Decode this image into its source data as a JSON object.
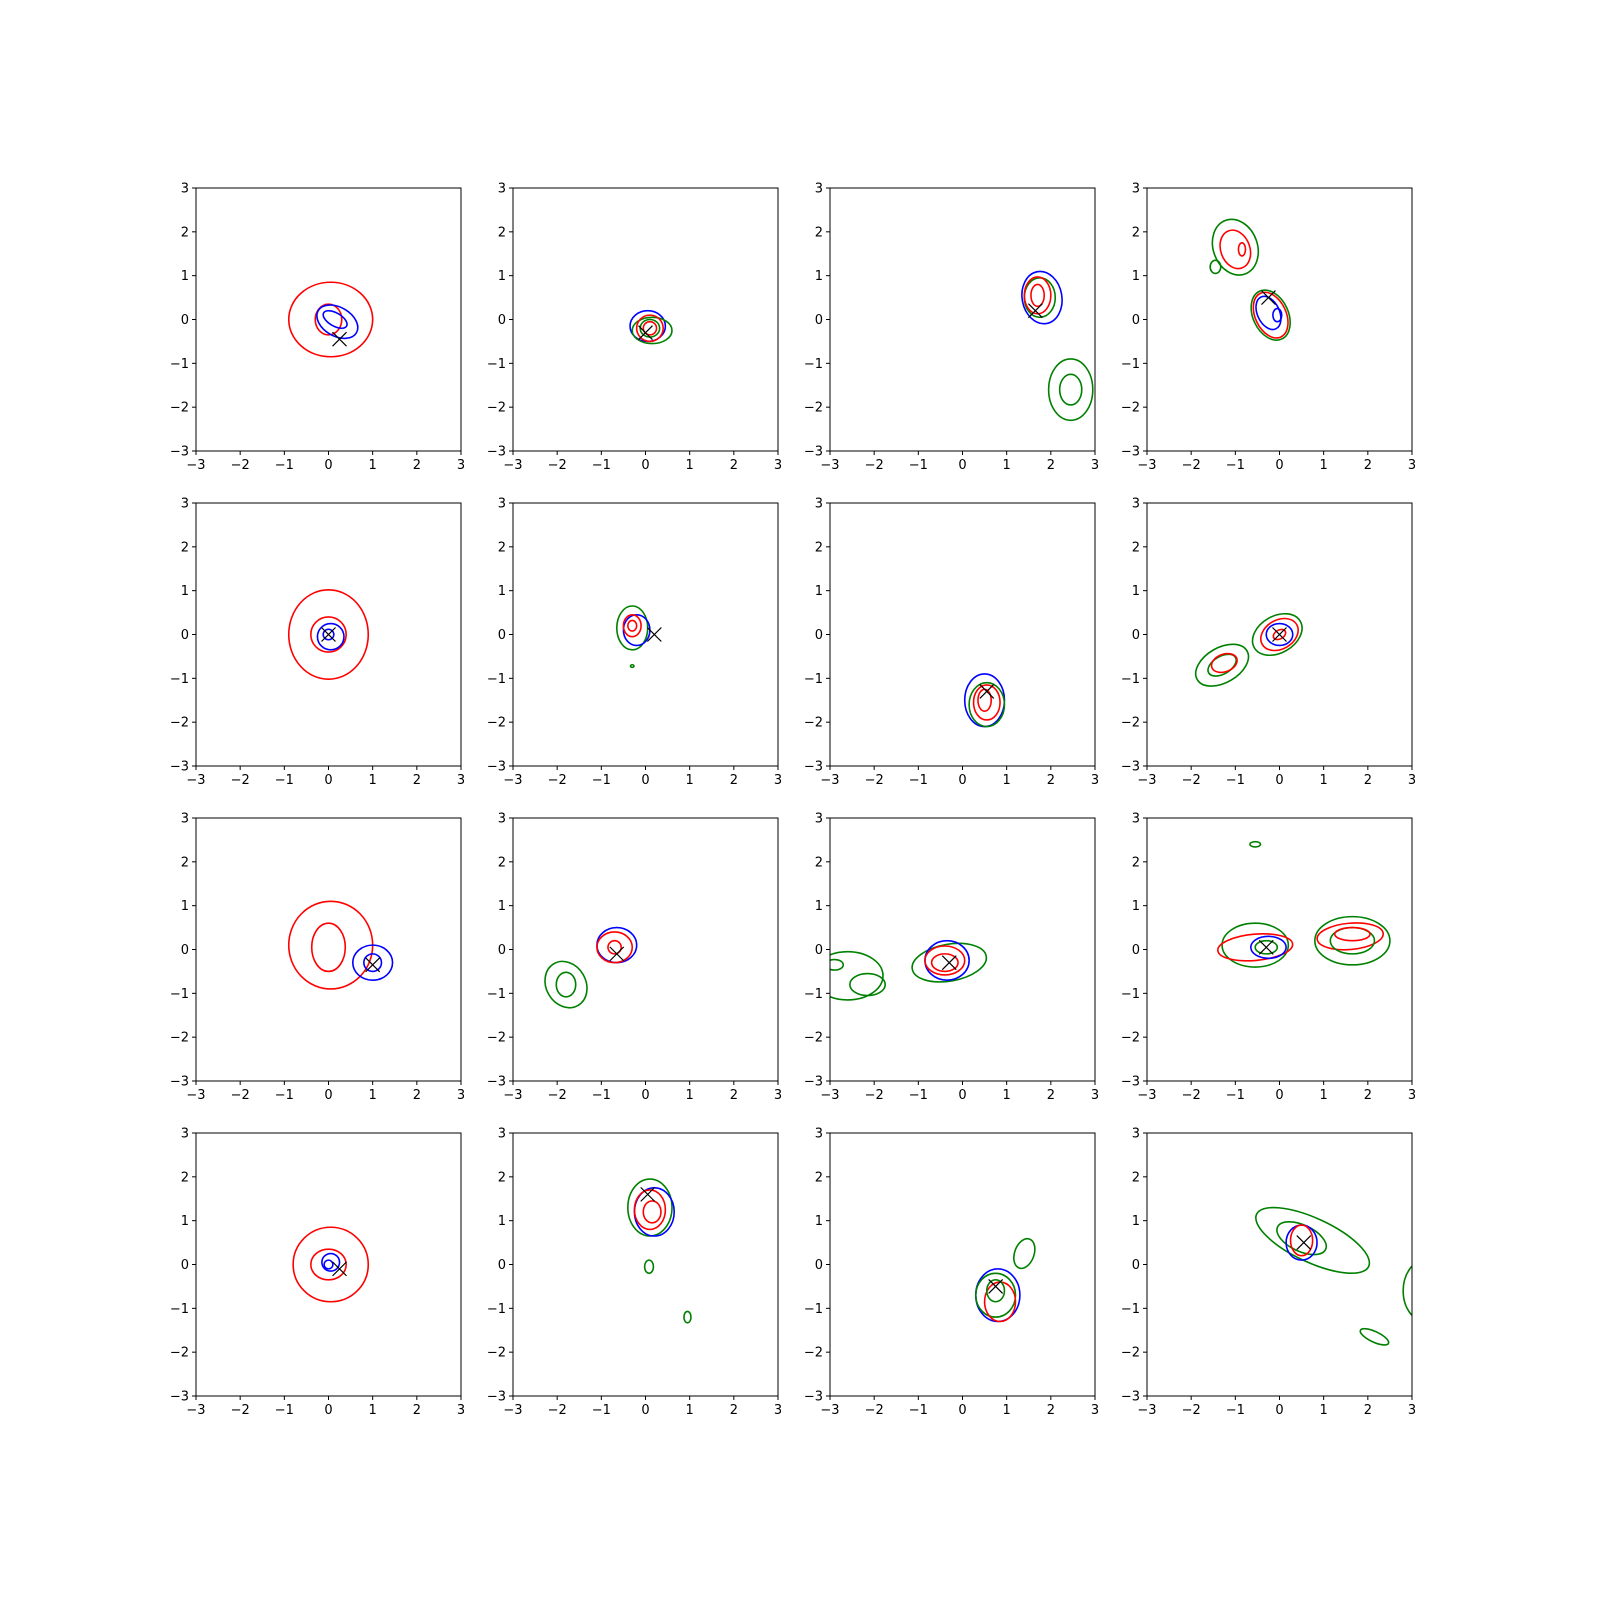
{
  "chart_data": {
    "type": "contour",
    "grid": false,
    "rows": 4,
    "cols": 4,
    "xlim": [
      -3,
      3
    ],
    "ylim": [
      -3,
      3
    ],
    "xticks": [
      -3,
      -2,
      -1,
      0,
      1,
      2,
      3
    ],
    "yticks": [
      -3,
      -2,
      -1,
      0,
      1,
      2,
      3
    ],
    "tick_labels": [
      "−3",
      "−2",
      "−1",
      "0",
      "1",
      "2",
      "3"
    ],
    "colors": {
      "red": "#ff0000",
      "blue": "#0000ff",
      "green": "#008000",
      "marker": "#000000"
    },
    "panels": [
      {
        "marker": [
          0.25,
          -0.45
        ],
        "contours": [
          {
            "c": "red",
            "cx": 0.05,
            "cy": 0.0,
            "rx": 0.95,
            "ry": 0.85,
            "a": 0
          },
          {
            "c": "red",
            "cx": 0.0,
            "cy": 0.0,
            "rx": 0.3,
            "ry": 0.35,
            "a": 0
          },
          {
            "c": "blue",
            "cx": 0.2,
            "cy": -0.05,
            "rx": 0.5,
            "ry": 0.33,
            "a": -30
          },
          {
            "c": "blue",
            "cx": 0.15,
            "cy": 0.0,
            "rx": 0.3,
            "ry": 0.15,
            "a": -30
          }
        ]
      },
      {
        "marker": [
          0.0,
          -0.3
        ],
        "contours": [
          {
            "c": "blue",
            "cx": 0.05,
            "cy": -0.15,
            "rx": 0.4,
            "ry": 0.35,
            "a": 0
          },
          {
            "c": "green",
            "cx": 0.15,
            "cy": -0.25,
            "rx": 0.45,
            "ry": 0.3,
            "a": 0
          },
          {
            "c": "red",
            "cx": 0.1,
            "cy": -0.2,
            "rx": 0.3,
            "ry": 0.3,
            "a": 0
          },
          {
            "c": "green",
            "cx": 0.1,
            "cy": -0.2,
            "rx": 0.22,
            "ry": 0.2,
            "a": 0
          },
          {
            "c": "red",
            "cx": 0.1,
            "cy": -0.2,
            "rx": 0.15,
            "ry": 0.15,
            "a": 0
          }
        ]
      },
      {
        "marker": [
          1.65,
          0.2
        ],
        "contours": [
          {
            "c": "blue",
            "cx": 1.8,
            "cy": 0.5,
            "rx": 0.45,
            "ry": 0.6,
            "a": 10
          },
          {
            "c": "green",
            "cx": 1.75,
            "cy": 0.5,
            "rx": 0.35,
            "ry": 0.45,
            "a": 0
          },
          {
            "c": "red",
            "cx": 1.7,
            "cy": 0.55,
            "rx": 0.3,
            "ry": 0.42,
            "a": 0
          },
          {
            "c": "red",
            "cx": 1.7,
            "cy": 0.55,
            "rx": 0.15,
            "ry": 0.25,
            "a": 0
          },
          {
            "c": "green",
            "cx": 2.45,
            "cy": -1.6,
            "rx": 0.5,
            "ry": 0.7,
            "a": 0
          },
          {
            "c": "green",
            "cx": 2.45,
            "cy": -1.6,
            "rx": 0.25,
            "ry": 0.35,
            "a": 0
          }
        ]
      },
      {
        "marker": [
          -0.25,
          0.5
        ],
        "contours": [
          {
            "c": "green",
            "cx": -1.0,
            "cy": 1.65,
            "rx": 0.5,
            "ry": 0.65,
            "a": 20
          },
          {
            "c": "green",
            "cx": -1.45,
            "cy": 1.2,
            "rx": 0.12,
            "ry": 0.15,
            "a": 0
          },
          {
            "c": "red",
            "cx": -1.0,
            "cy": 1.6,
            "rx": 0.33,
            "ry": 0.45,
            "a": 20
          },
          {
            "c": "red",
            "cx": -0.85,
            "cy": 1.6,
            "rx": 0.08,
            "ry": 0.15,
            "a": 0
          },
          {
            "c": "green",
            "cx": -0.2,
            "cy": 0.1,
            "rx": 0.4,
            "ry": 0.6,
            "a": 25
          },
          {
            "c": "red",
            "cx": -0.2,
            "cy": 0.1,
            "rx": 0.35,
            "ry": 0.55,
            "a": 25
          },
          {
            "c": "blue",
            "cx": -0.25,
            "cy": 0.15,
            "rx": 0.25,
            "ry": 0.4,
            "a": 25
          },
          {
            "c": "blue",
            "cx": -0.05,
            "cy": 0.1,
            "rx": 0.1,
            "ry": 0.15,
            "a": 0
          }
        ]
      },
      {
        "marker": [
          0.0,
          0.0
        ],
        "contours": [
          {
            "c": "red",
            "cx": 0.0,
            "cy": 0.0,
            "rx": 0.9,
            "ry": 1.02,
            "a": 0
          },
          {
            "c": "red",
            "cx": 0.0,
            "cy": 0.0,
            "rx": 0.4,
            "ry": 0.4,
            "a": 0
          },
          {
            "c": "blue",
            "cx": 0.05,
            "cy": -0.05,
            "rx": 0.3,
            "ry": 0.3,
            "a": 0
          },
          {
            "c": "blue",
            "cx": 0.0,
            "cy": 0.0,
            "rx": 0.12,
            "ry": 0.12,
            "a": 0
          }
        ]
      },
      {
        "marker": [
          0.2,
          0.0
        ],
        "contours": [
          {
            "c": "green",
            "cx": -0.3,
            "cy": 0.15,
            "rx": 0.35,
            "ry": 0.5,
            "a": 0
          },
          {
            "c": "blue",
            "cx": -0.2,
            "cy": 0.1,
            "rx": 0.3,
            "ry": 0.35,
            "a": 0
          },
          {
            "c": "red",
            "cx": -0.3,
            "cy": 0.2,
            "rx": 0.2,
            "ry": 0.25,
            "a": 0
          },
          {
            "c": "red",
            "cx": -0.3,
            "cy": 0.2,
            "rx": 0.1,
            "ry": 0.12,
            "a": 0
          },
          {
            "c": "green",
            "cx": -0.3,
            "cy": -0.72,
            "rx": 0.04,
            "ry": 0.03,
            "a": 0
          }
        ]
      },
      {
        "marker": [
          0.55,
          -1.3
        ],
        "contours": [
          {
            "c": "blue",
            "cx": 0.5,
            "cy": -1.5,
            "rx": 0.45,
            "ry": 0.6,
            "a": 0
          },
          {
            "c": "green",
            "cx": 0.55,
            "cy": -1.6,
            "rx": 0.4,
            "ry": 0.5,
            "a": 0
          },
          {
            "c": "red",
            "cx": 0.55,
            "cy": -1.55,
            "rx": 0.3,
            "ry": 0.4,
            "a": 0
          },
          {
            "c": "red",
            "cx": 0.5,
            "cy": -1.5,
            "rx": 0.15,
            "ry": 0.25,
            "a": 0
          }
        ]
      },
      {
        "marker": [
          0.0,
          0.0
        ],
        "contours": [
          {
            "c": "green",
            "cx": -1.3,
            "cy": -0.7,
            "rx": 0.65,
            "ry": 0.4,
            "a": 30
          },
          {
            "c": "green",
            "cx": -1.3,
            "cy": -0.7,
            "rx": 0.35,
            "ry": 0.2,
            "a": 30
          },
          {
            "c": "red",
            "cx": -1.25,
            "cy": -0.65,
            "rx": 0.3,
            "ry": 0.2,
            "a": 20
          },
          {
            "c": "green",
            "cx": -0.05,
            "cy": 0.0,
            "rx": 0.6,
            "ry": 0.42,
            "a": 30
          },
          {
            "c": "red",
            "cx": 0.0,
            "cy": 0.0,
            "rx": 0.45,
            "ry": 0.33,
            "a": 30
          },
          {
            "c": "blue",
            "cx": 0.0,
            "cy": 0.0,
            "rx": 0.3,
            "ry": 0.25,
            "a": 0
          },
          {
            "c": "red",
            "cx": 0.0,
            "cy": 0.0,
            "rx": 0.15,
            "ry": 0.1,
            "a": 30
          }
        ]
      },
      {
        "marker": [
          1.0,
          -0.35
        ],
        "contours": [
          {
            "c": "red",
            "cx": 0.05,
            "cy": 0.1,
            "rx": 0.95,
            "ry": 1.0,
            "a": 0
          },
          {
            "c": "red",
            "cx": 0.0,
            "cy": 0.05,
            "rx": 0.38,
            "ry": 0.55,
            "a": 0
          },
          {
            "c": "blue",
            "cx": 1.0,
            "cy": -0.3,
            "rx": 0.45,
            "ry": 0.4,
            "a": 0
          },
          {
            "c": "blue",
            "cx": 1.0,
            "cy": -0.3,
            "rx": 0.2,
            "ry": 0.2,
            "a": 0
          }
        ]
      },
      {
        "marker": [
          -0.65,
          -0.1
        ],
        "contours": [
          {
            "c": "green",
            "cx": -1.8,
            "cy": -0.8,
            "rx": 0.45,
            "ry": 0.55,
            "a": 30
          },
          {
            "c": "green",
            "cx": -1.8,
            "cy": -0.8,
            "rx": 0.22,
            "ry": 0.28,
            "a": 0
          },
          {
            "c": "blue",
            "cx": -0.65,
            "cy": 0.1,
            "rx": 0.45,
            "ry": 0.4,
            "a": 0
          },
          {
            "c": "red",
            "cx": -0.7,
            "cy": 0.05,
            "rx": 0.4,
            "ry": 0.35,
            "a": 0
          },
          {
            "c": "red",
            "cx": -0.7,
            "cy": 0.05,
            "rx": 0.15,
            "ry": 0.15,
            "a": 0
          }
        ]
      },
      {
        "marker": [
          -0.3,
          -0.3
        ],
        "contours": [
          {
            "c": "green",
            "cx": -2.6,
            "cy": -0.6,
            "rx": 0.8,
            "ry": 0.55,
            "a": 0
          },
          {
            "c": "green",
            "cx": -2.15,
            "cy": -0.8,
            "rx": 0.4,
            "ry": 0.25,
            "a": 0
          },
          {
            "c": "green",
            "cx": -2.9,
            "cy": -0.35,
            "rx": 0.2,
            "ry": 0.12,
            "a": 0
          },
          {
            "c": "green",
            "cx": -0.3,
            "cy": -0.3,
            "rx": 0.85,
            "ry": 0.42,
            "a": 10
          },
          {
            "c": "blue",
            "cx": -0.35,
            "cy": -0.25,
            "rx": 0.5,
            "ry": 0.45,
            "a": 0
          },
          {
            "c": "red",
            "cx": -0.4,
            "cy": -0.25,
            "rx": 0.45,
            "ry": 0.33,
            "a": 0
          },
          {
            "c": "red",
            "cx": -0.4,
            "cy": -0.3,
            "rx": 0.3,
            "ry": 0.2,
            "a": 0
          }
        ]
      },
      {
        "marker": [
          -0.3,
          0.05
        ],
        "contours": [
          {
            "c": "green",
            "cx": -0.55,
            "cy": 2.4,
            "rx": 0.12,
            "ry": 0.06,
            "a": 0
          },
          {
            "c": "green",
            "cx": -0.55,
            "cy": 0.1,
            "rx": 0.75,
            "ry": 0.5,
            "a": 0
          },
          {
            "c": "red",
            "cx": -0.55,
            "cy": 0.05,
            "rx": 0.85,
            "ry": 0.3,
            "a": 5
          },
          {
            "c": "blue",
            "cx": -0.25,
            "cy": 0.05,
            "rx": 0.4,
            "ry": 0.25,
            "a": 0
          },
          {
            "c": "green",
            "cx": -0.3,
            "cy": 0.05,
            "rx": 0.25,
            "ry": 0.15,
            "a": 0
          },
          {
            "c": "green",
            "cx": 1.65,
            "cy": 0.2,
            "rx": 0.85,
            "ry": 0.55,
            "a": 0
          },
          {
            "c": "red",
            "cx": 1.6,
            "cy": 0.3,
            "rx": 0.75,
            "ry": 0.3,
            "a": 5
          },
          {
            "c": "green",
            "cx": 1.65,
            "cy": 0.2,
            "rx": 0.5,
            "ry": 0.3,
            "a": 0
          },
          {
            "c": "red",
            "cx": 1.65,
            "cy": 0.35,
            "rx": 0.4,
            "ry": 0.15,
            "a": 0
          }
        ]
      },
      {
        "marker": [
          0.25,
          -0.1
        ],
        "contours": [
          {
            "c": "red",
            "cx": 0.05,
            "cy": 0.0,
            "rx": 0.85,
            "ry": 0.85,
            "a": 0
          },
          {
            "c": "red",
            "cx": 0.0,
            "cy": 0.0,
            "rx": 0.4,
            "ry": 0.35,
            "a": 0
          },
          {
            "c": "blue",
            "cx": 0.05,
            "cy": 0.05,
            "rx": 0.2,
            "ry": 0.2,
            "a": 0
          },
          {
            "c": "blue",
            "cx": 0.0,
            "cy": 0.0,
            "rx": 0.1,
            "ry": 0.1,
            "a": 0
          }
        ]
      },
      {
        "marker": [
          0.05,
          1.6
        ],
        "contours": [
          {
            "c": "green",
            "cx": 0.1,
            "cy": 1.3,
            "rx": 0.5,
            "ry": 0.65,
            "a": 0
          },
          {
            "c": "blue",
            "cx": 0.2,
            "cy": 1.2,
            "rx": 0.45,
            "ry": 0.55,
            "a": 0
          },
          {
            "c": "red",
            "cx": 0.1,
            "cy": 1.25,
            "rx": 0.35,
            "ry": 0.45,
            "a": 0
          },
          {
            "c": "red",
            "cx": 0.15,
            "cy": 1.2,
            "rx": 0.2,
            "ry": 0.25,
            "a": 0
          },
          {
            "c": "green",
            "cx": 0.08,
            "cy": -0.05,
            "rx": 0.1,
            "ry": 0.15,
            "a": 0
          },
          {
            "c": "green",
            "cx": 0.95,
            "cy": -1.2,
            "rx": 0.08,
            "ry": 0.13,
            "a": 0
          }
        ]
      },
      {
        "marker": [
          0.75,
          -0.5
        ],
        "contours": [
          {
            "c": "blue",
            "cx": 0.8,
            "cy": -0.7,
            "rx": 0.5,
            "ry": 0.6,
            "a": 0
          },
          {
            "c": "green",
            "cx": 0.75,
            "cy": -0.7,
            "rx": 0.45,
            "ry": 0.5,
            "a": 0
          },
          {
            "c": "red",
            "cx": 0.85,
            "cy": -0.85,
            "rx": 0.35,
            "ry": 0.45,
            "a": 0
          },
          {
            "c": "green",
            "cx": 0.75,
            "cy": -0.6,
            "rx": 0.2,
            "ry": 0.25,
            "a": 0
          },
          {
            "c": "green",
            "cx": 1.4,
            "cy": 0.25,
            "rx": 0.22,
            "ry": 0.35,
            "a": -20
          }
        ]
      },
      {
        "marker": [
          0.55,
          0.5
        ],
        "contours": [
          {
            "c": "green",
            "cx": 0.75,
            "cy": 0.55,
            "rx": 1.4,
            "ry": 0.5,
            "a": -25
          },
          {
            "c": "green",
            "cx": 0.5,
            "cy": 0.6,
            "rx": 0.6,
            "ry": 0.3,
            "a": -25
          },
          {
            "c": "blue",
            "cx": 0.5,
            "cy": 0.5,
            "rx": 0.35,
            "ry": 0.4,
            "a": 0
          },
          {
            "c": "red",
            "cx": 0.5,
            "cy": 0.55,
            "rx": 0.25,
            "ry": 0.35,
            "a": 0
          },
          {
            "c": "green",
            "cx": 3.3,
            "cy": -0.6,
            "rx": 0.5,
            "ry": 0.7,
            "a": 0
          },
          {
            "c": "green",
            "cx": 2.15,
            "cy": -1.65,
            "rx": 0.35,
            "ry": 0.12,
            "a": -25
          }
        ]
      }
    ]
  }
}
